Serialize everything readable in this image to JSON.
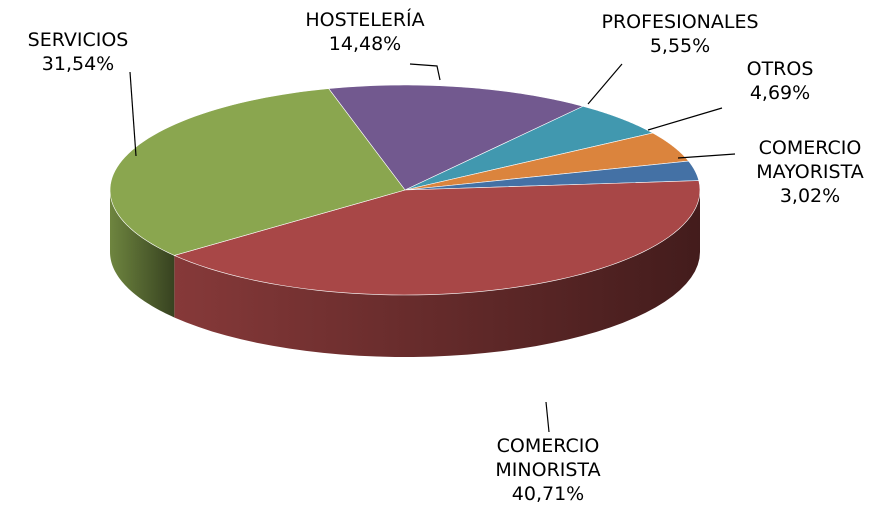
{
  "chart_data": {
    "type": "pie3d",
    "categories": [
      "HOSTELERÍA",
      "PROFESIONALES",
      "OTROS",
      "COMERCIO MAYORISTA",
      "COMERCIO MINORISTA",
      "SERVICIOS"
    ],
    "values": [
      14.48,
      5.55,
      4.69,
      3.02,
      40.71,
      31.54
    ],
    "value_labels": [
      "14,48%",
      "5,55%",
      "4,69%",
      "3,02%",
      "40,71%",
      "31,54%"
    ],
    "colors": [
      "#72598f",
      "#4198af",
      "#db843d",
      "#4471a5",
      "#a84747",
      "#8aa64f"
    ]
  }
}
